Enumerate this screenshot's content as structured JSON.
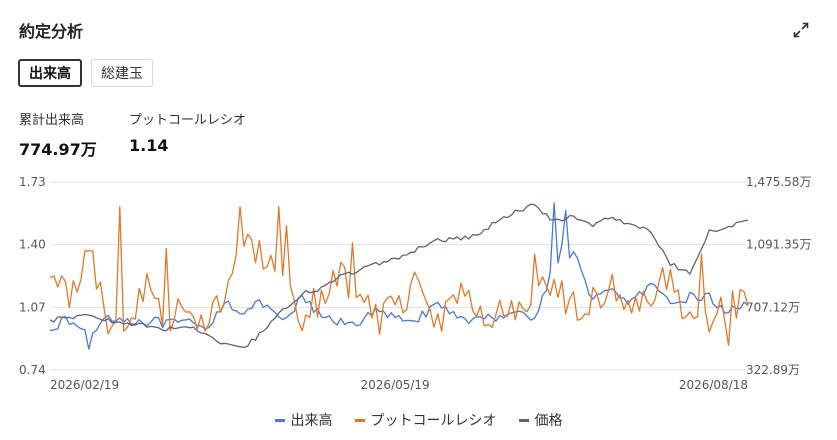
{
  "panel": {
    "title": "約定分析",
    "expand_icon": "expand-arrows-icon"
  },
  "tabs": [
    {
      "label": "出来高",
      "selected": true
    },
    {
      "label": "総建玉",
      "selected": false
    }
  ],
  "stats": [
    {
      "label": "累計出来高",
      "value": "774.97万"
    },
    {
      "label": "プットコールレシオ",
      "value": "1.14"
    }
  ],
  "colors": {
    "volume": "#4a78d6",
    "put_call_ratio": "#e07a2a",
    "price": "#5b6579",
    "grid": "#e3e3e3"
  },
  "chart_data": {
    "type": "line",
    "title": "",
    "xlabel": "",
    "ylabel": "",
    "grid": true,
    "legend_position": "bottom",
    "x_start": "2026/02/19",
    "x_end": "2026/08/18",
    "x_ticks": [
      "2026/02/19",
      "2026/05/19",
      "2026/08/18"
    ],
    "y_left": {
      "ticks": [
        "1.73",
        "1.40",
        "1.07",
        "0.74"
      ],
      "range": [
        0.74,
        1.73
      ]
    },
    "y_right": {
      "ticks": [
        "1,475.58万",
        "1,091.35万",
        "707.12万",
        "322.89万"
      ],
      "range": [
        322.89,
        1475.58
      ]
    },
    "series": [
      {
        "name": "出来高",
        "color": "#4a78d6",
        "values_every_5_days": [
          0.97,
          1.0,
          0.92,
          1.03,
          1.0,
          1.0,
          0.98,
          0.99,
          0.95,
          1.1,
          1.05,
          1.09,
          0.98,
          1.12,
          1.02,
          0.99,
          1.0,
          1.05,
          1.0,
          1.02,
          1.07,
          1.03,
          1.0,
          1.02,
          1.06,
          1.0,
          1.3,
          1.35,
          1.12,
          1.15,
          1.1,
          1.18,
          1.08,
          1.13,
          1.12,
          1.04,
          1.1
        ]
      },
      {
        "name": "プットコールレシオ",
        "color": "#e07a2a",
        "values_every_5_days": [
          1.25,
          1.12,
          1.4,
          1.0,
          1.0,
          1.15,
          1.02,
          1.1,
          1.0,
          1.15,
          1.4,
          1.32,
          1.15,
          1.0,
          1.14,
          1.23,
          1.19,
          1.02,
          1.1,
          1.2,
          1.0,
          1.17,
          1.05,
          1.0,
          1.05,
          1.15,
          1.12,
          1.1,
          1.08,
          1.2,
          1.02,
          1.1,
          1.25,
          1.0,
          1.02,
          1.05,
          1.15
        ]
      },
      {
        "name": "価格",
        "color": "#5b6579",
        "values_every_5_days": [
          1.0,
          1.02,
          1.03,
          1.0,
          0.99,
          0.97,
          0.95,
          0.98,
          0.93,
          0.88,
          0.86,
          0.94,
          1.05,
          1.14,
          1.17,
          1.23,
          1.27,
          1.3,
          1.33,
          1.38,
          1.42,
          1.43,
          1.45,
          1.52,
          1.57,
          1.61,
          1.52,
          1.55,
          1.5,
          1.55,
          1.5,
          1.47,
          1.3,
          1.25,
          1.47,
          1.5,
          1.52
        ]
      }
    ]
  }
}
